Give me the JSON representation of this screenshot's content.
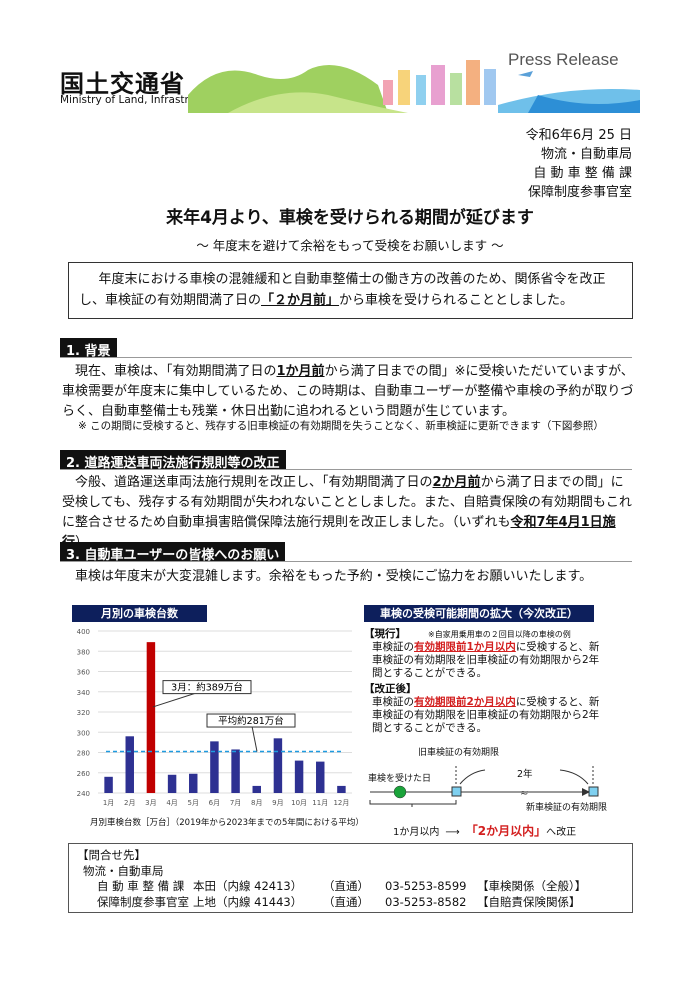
{
  "header": {
    "ministry_jp": "国土交通省",
    "ministry_en": "Ministry of Land, Infrastructure, Transport and Tourism",
    "press_release": "Press Release"
  },
  "date_block": [
    "令和6年6月 25 日",
    "物流・自動車局",
    "自 動 車 整 備 課",
    "保障制度参事官室"
  ],
  "title": "来年4月より、車検を受けられる期間が延びます",
  "subtitle": "～ 年度末を避けて余裕をもって受検をお願いします ～",
  "summary": {
    "pre": "年度末における車検の混雑緩和と自動車整備士の働き方の改善のため、関係省令を改正し、車検証の有効期間満了日の",
    "emph": "「２か月前」",
    "post": "から車検を受けられることとしました。"
  },
  "sections": [
    {
      "heading": "1. 背景",
      "p_pre": "現在、車検は、「有効期間満了日の",
      "p_emph": "1か月前",
      "p_post": "から満了日までの間」※に受検いただいていますが、車検需要が年度末に集中しているため、この時期は、自動車ユーザーが整備や車検の予約が取りづらく、自動車整備士も残業・休日出勤に追われるという問題が生じています。",
      "note": "※ この期間に受検すると、残存する旧車検証の有効期間を失うことなく、新車検証に更新できます（下図参照）"
    },
    {
      "heading": "2. 道路運送車両法施行規則等の改正",
      "p_pre": "今般、道路運送車両法施行規則を改正し、「有効期間満了日の",
      "p_emph": "2か月前",
      "p_mid": "から満了日までの間」に受検しても、残存する有効期間が失われないこととしました。また、自賠責保険の有効期間もこれに整合させるため自動車損害賠償保障法施行規則を改正しました。（いずれも",
      "p_emph2": "令和7年4月1日施行",
      "p_post": "）"
    },
    {
      "heading": "3. 自動車ユーザーの皆様へのお願い",
      "p": "車検は年度末が大変混雑します。余裕をもった予約・受検にご協力をお願いいたします。"
    }
  ],
  "chart_data": {
    "type": "bar",
    "title": "月別の車検台数",
    "categories": [
      "1月",
      "2月",
      "3月",
      "4月",
      "5月",
      "6月",
      "7月",
      "8月",
      "9月",
      "10月",
      "11月",
      "12月"
    ],
    "values": [
      256,
      296,
      389,
      258,
      259,
      291,
      283,
      247,
      294,
      272,
      271,
      247
    ],
    "ylim": [
      240,
      400
    ],
    "yticks": [
      240,
      260,
      280,
      300,
      320,
      340,
      360,
      380,
      400
    ],
    "average": 281,
    "grid": true,
    "annotations": [
      "3月：約389万台",
      "平均約281万台"
    ],
    "caption": "月別車検台数［万台］（2019年から2023年までの5年間における平均）",
    "colors": {
      "bar": "#2e3192",
      "highlight": "#c00000",
      "average": "#1e9be0"
    }
  },
  "diagram": {
    "title": "車検の受検可能期間の拡大（今次改正）",
    "current_label": "【現行】",
    "current_note": "※自家用乗用車の２回目以降の車検の例",
    "current_pre": "車検証の",
    "current_emph": "有効期限前1か月以内",
    "current_post": "に受検すると、新車検証の有効期限を旧車検証の有効期限から2年間とすることができる。",
    "after_label": "【改正後】",
    "after_pre": "車検証の",
    "after_emph": "有効期限前2か月以内",
    "after_post": "に受検すると、新車検証の有効期限を旧車検証の有効期限から2年間とすることができる。",
    "old_expiry": "旧車検証の有効期限",
    "inspection_day": "車検を受けた日",
    "two_years": "2年",
    "new_expiry": "新車検証の有効期限",
    "before_range": "1か月以内",
    "after_range": "「2か月以内」",
    "change_suffix": "へ改正"
  },
  "contact": {
    "heading": "【問合せ先】",
    "bureau": "物流・自動車局",
    "rows": [
      [
        "自 動 車 整 備 課",
        "本田（内線 42413）",
        "（直通）",
        "03-5253-8599",
        "【車検関係（全般）】"
      ],
      [
        "保障制度参事官室",
        "上地（内線 41443）",
        "（直通）",
        "03-5253-8582",
        "【自賠責保険関係】"
      ]
    ]
  }
}
